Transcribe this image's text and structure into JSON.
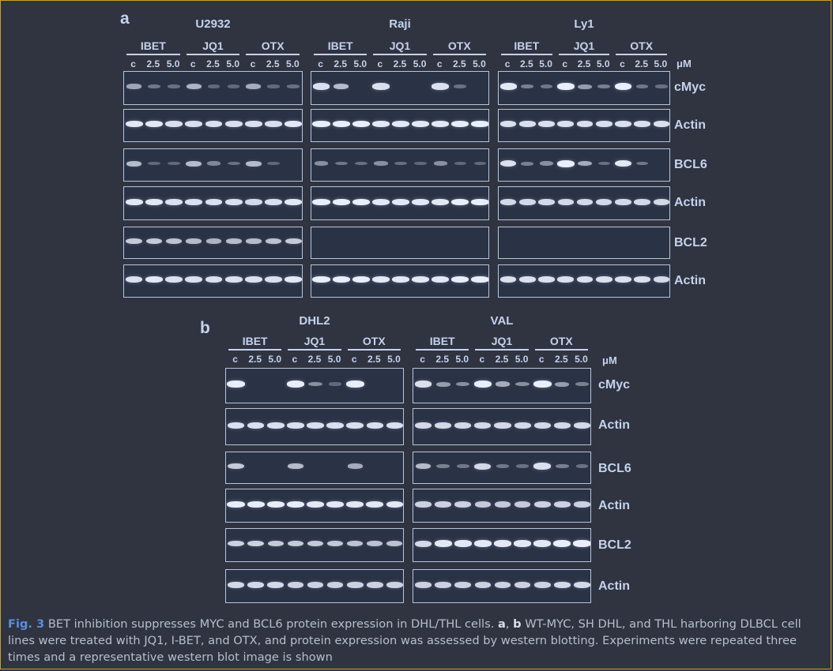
{
  "panels": [
    {
      "letter": "a",
      "cells": [
        {
          "name": "U2932"
        },
        {
          "name": "Raji"
        },
        {
          "name": "Ly1"
        }
      ],
      "groups": [
        "IBET",
        "JQ1",
        "OTX"
      ],
      "conc_labels": [
        "c",
        "2.5",
        "5.0"
      ],
      "unit": "μM",
      "rows": [
        "cMyc",
        "Actin",
        "BCL6",
        "Actin",
        "BCL2",
        "Actin"
      ]
    },
    {
      "letter": "b",
      "cells": [
        {
          "name": "DHL2"
        },
        {
          "name": "VAL"
        }
      ],
      "groups": [
        "IBET",
        "JQ1",
        "OTX"
      ],
      "conc_labels": [
        "c",
        "2.5",
        "5.0"
      ],
      "unit": "μM",
      "rows": [
        "cMyc",
        "Actin",
        "BCL6",
        "Actin",
        "BCL2",
        "Actin"
      ]
    }
  ],
  "band_intensity": {
    "a": {
      "U2932": {
        "cMyc": [
          0.45,
          0.15,
          0.1,
          0.55,
          0.05,
          0.05,
          0.5,
          0.05,
          0.1
        ],
        "Actin1": [
          0.9,
          0.9,
          0.85,
          0.85,
          0.85,
          0.85,
          0.85,
          0.85,
          0.9
        ],
        "BCL6": [
          0.6,
          0.05,
          0.05,
          0.6,
          0.25,
          0.1,
          0.6,
          0.05,
          0.0
        ],
        "Actin2": [
          0.9,
          0.9,
          0.85,
          0.85,
          0.85,
          0.85,
          0.8,
          0.85,
          0.9
        ],
        "BCL2": [
          0.7,
          0.7,
          0.65,
          0.6,
          0.55,
          0.6,
          0.6,
          0.65,
          0.7
        ],
        "Actin3": [
          0.85,
          0.9,
          0.85,
          0.85,
          0.85,
          0.85,
          0.85,
          0.85,
          0.9
        ]
      },
      "Raji": {
        "cMyc": [
          0.85,
          0.6,
          0.0,
          0.85,
          0.0,
          0.0,
          0.85,
          0.1,
          0.0
        ],
        "Actin1": [
          0.95,
          0.95,
          0.95,
          0.9,
          0.9,
          0.9,
          0.9,
          0.95,
          0.95
        ],
        "BCL6": [
          0.3,
          0.15,
          0.1,
          0.3,
          0.1,
          0.05,
          0.3,
          0.05,
          0.05
        ],
        "Actin2": [
          0.95,
          0.95,
          0.95,
          0.9,
          0.9,
          0.9,
          0.9,
          0.95,
          0.95
        ],
        "BCL2": [
          0,
          0,
          0,
          0,
          0,
          0,
          0,
          0,
          0
        ],
        "Actin3": [
          0.95,
          0.95,
          0.95,
          0.9,
          0.9,
          0.9,
          0.9,
          0.95,
          0.95
        ]
      },
      "Ly1": {
        "cMyc": [
          0.9,
          0.2,
          0.15,
          1.0,
          0.4,
          0.2,
          1.0,
          0.15,
          0.1
        ],
        "Actin1": [
          0.85,
          0.85,
          0.85,
          0.85,
          0.85,
          0.85,
          0.85,
          0.85,
          0.85
        ],
        "BCL6": [
          0.85,
          0.2,
          0.3,
          1.0,
          0.5,
          0.1,
          0.9,
          0.15,
          0.0
        ],
        "Actin2": [
          0.8,
          0.8,
          0.8,
          0.8,
          0.8,
          0.8,
          0.8,
          0.8,
          0.8
        ],
        "BCL2": [
          0,
          0,
          0,
          0,
          0,
          0,
          0,
          0,
          0
        ],
        "Actin3": [
          0.85,
          0.85,
          0.85,
          0.85,
          0.85,
          0.85,
          0.85,
          0.85,
          0.8
        ]
      }
    },
    "b": {
      "DHL2": {
        "cMyc": [
          1.0,
          0.0,
          0.0,
          0.95,
          0.3,
          0.05,
          1.0,
          0.0,
          0.0
        ],
        "Actin1": [
          0.85,
          0.85,
          0.85,
          0.85,
          0.85,
          0.85,
          0.85,
          0.85,
          0.85
        ],
        "BCL6": [
          0.7,
          0.0,
          0.0,
          0.6,
          0.0,
          0.0,
          0.5,
          0.0,
          0.0
        ],
        "Actin2": [
          0.95,
          0.95,
          0.95,
          0.95,
          0.9,
          0.9,
          0.9,
          0.9,
          0.9
        ],
        "BCL2": [
          0.75,
          0.75,
          0.7,
          0.7,
          0.7,
          0.7,
          0.65,
          0.65,
          0.65
        ],
        "Actin3": [
          0.8,
          0.8,
          0.8,
          0.75,
          0.75,
          0.75,
          0.75,
          0.75,
          0.75
        ]
      },
      "VAL": {
        "cMyc": [
          0.85,
          0.4,
          0.3,
          1.0,
          0.5,
          0.3,
          1.0,
          0.4,
          0.2
        ],
        "Actin1": [
          0.8,
          0.8,
          0.8,
          0.8,
          0.8,
          0.8,
          0.8,
          0.8,
          0.8
        ],
        "BCL6": [
          0.6,
          0.2,
          0.15,
          0.8,
          0.15,
          0.1,
          0.85,
          0.2,
          0.1
        ],
        "Actin2": [
          0.75,
          0.75,
          0.75,
          0.7,
          0.7,
          0.7,
          0.75,
          0.75,
          0.75
        ],
        "BCL2": [
          0.8,
          0.9,
          0.9,
          0.9,
          0.9,
          0.9,
          0.9,
          0.95,
          0.95
        ],
        "Actin3": [
          0.75,
          0.75,
          0.75,
          0.75,
          0.75,
          0.75,
          0.75,
          0.8,
          0.8
        ]
      }
    }
  },
  "caption": {
    "label": "Fig. 3",
    "text_1": " BET inhibition suppresses MYC and BCL6 protein expression in DHL/THL cells. ",
    "bold_a": "a",
    "sep": ", ",
    "bold_b": "b",
    "text_2": " WT-MYC, SH DHL, and THL harboring DLBCL cell lines were treated with JQ1, I-BET, and OTX, and protein expression was assessed by western blotting. Experiments were repeated three times and a representative western blot image is shown"
  }
}
